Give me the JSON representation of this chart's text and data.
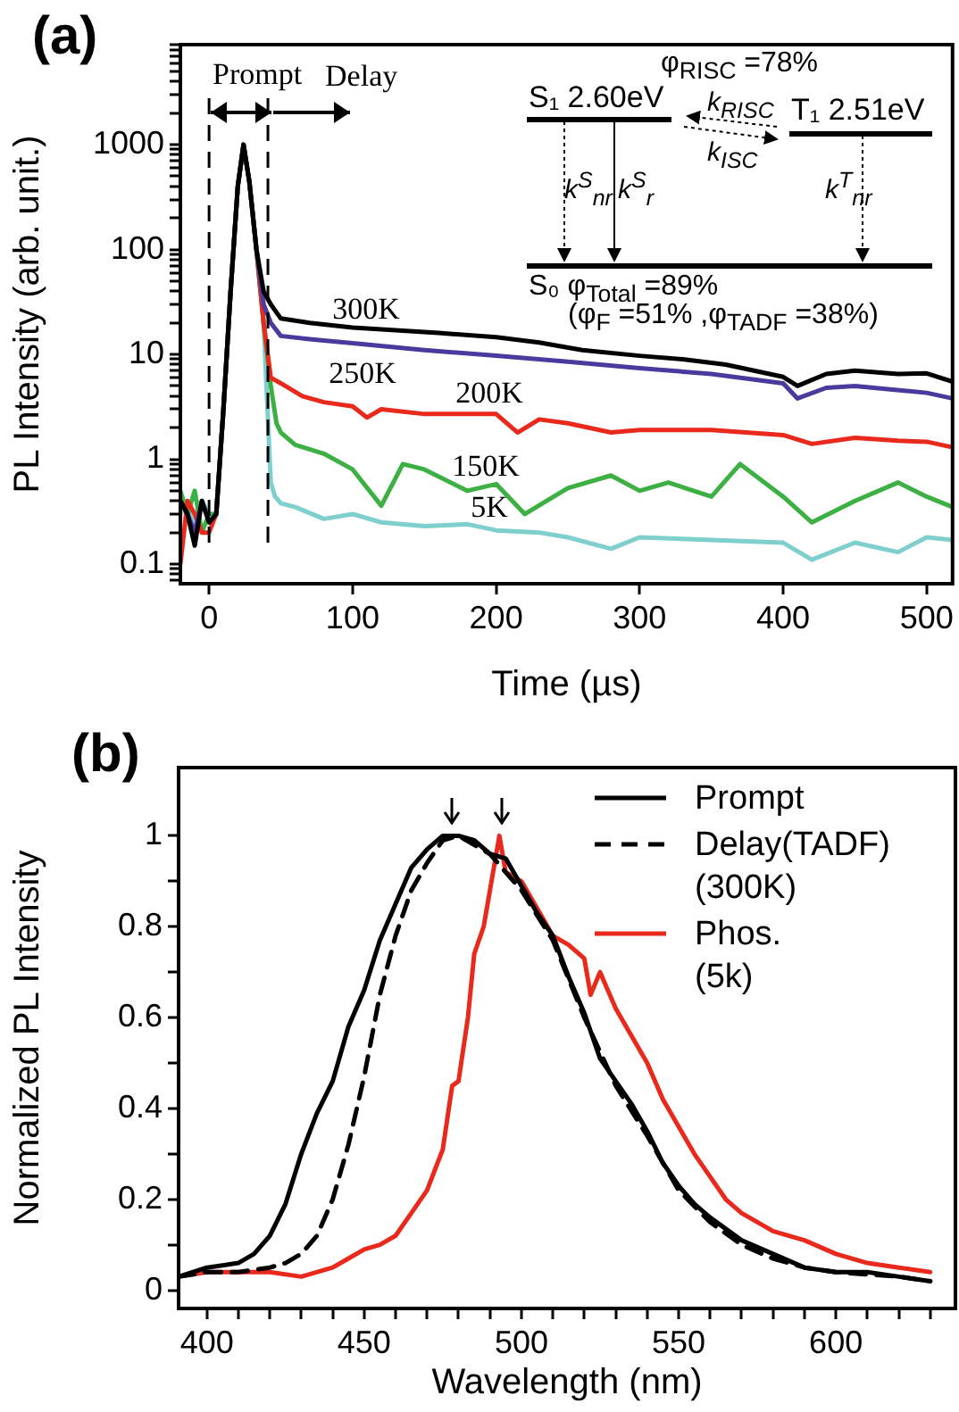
{
  "chart_data": [
    {
      "type": "line",
      "xlabel": "Time (µs)",
      "ylabel": "PL Intensity (arb. unit.)",
      "log": "y",
      "grid": false,
      "marker": "none",
      "line_style": "solid",
      "xlim": [
        -20,
        518
      ],
      "ylim": [
        0.065,
        9000
      ],
      "xticks": [
        0,
        100,
        200,
        300,
        400,
        500
      ],
      "yticks": [
        {
          "value": 0.07,
          "label": null
        },
        {
          "value": 0.08,
          "label": null
        },
        {
          "value": 0.09,
          "label": null
        },
        0.1,
        {
          "value": 0.2,
          "label": null
        },
        {
          "value": 0.3,
          "label": null
        },
        {
          "value": 0.4,
          "label": null
        },
        {
          "value": 0.5,
          "label": null
        },
        {
          "value": 0.6,
          "label": null
        },
        {
          "value": 0.7,
          "label": null
        },
        {
          "value": 0.8,
          "label": null
        },
        {
          "value": 0.9,
          "label": null
        },
        1,
        {
          "value": 2,
          "label": null
        },
        {
          "value": 3,
          "label": null
        },
        {
          "value": 4,
          "label": null
        },
        {
          "value": 5,
          "label": null
        },
        {
          "value": 6,
          "label": null
        },
        {
          "value": 7,
          "label": null
        },
        {
          "value": 8,
          "label": null
        },
        {
          "value": 9,
          "label": null
        },
        10,
        {
          "value": 20,
          "label": null
        },
        {
          "value": 30,
          "label": null
        },
        {
          "value": 40,
          "label": null
        },
        {
          "value": 50,
          "label": null
        },
        {
          "value": 60,
          "label": null
        },
        {
          "value": 70,
          "label": null
        },
        {
          "value": 80,
          "label": null
        },
        {
          "value": 90,
          "label": null
        },
        100,
        {
          "value": 200,
          "label": null
        },
        {
          "value": 300,
          "label": null
        },
        {
          "value": 400,
          "label": null
        },
        {
          "value": 500,
          "label": null
        },
        {
          "value": 600,
          "label": null
        },
        {
          "value": 700,
          "label": null
        },
        {
          "value": 800,
          "label": null
        },
        {
          "value": 900,
          "label": null
        },
        1000,
        {
          "value": 2000,
          "label": null
        },
        {
          "value": 3000,
          "label": null
        },
        {
          "value": 4000,
          "label": null
        },
        {
          "value": 5000,
          "label": null
        },
        {
          "value": 6000,
          "label": null
        },
        {
          "value": 7000,
          "label": null
        },
        {
          "value": 8000,
          "label": null
        },
        {
          "value": 9000,
          "label": null
        }
      ],
      "series": [
        {
          "name": "300K",
          "color": "#000000",
          "x": [
            -20,
            -15,
            -10,
            -5,
            0,
            5,
            10,
            15,
            20,
            24,
            28,
            33,
            38,
            43,
            50,
            70,
            100,
            130,
            160,
            200,
            230,
            260,
            300,
            330,
            360,
            400,
            410,
            430,
            450,
            480,
            500,
            518
          ],
          "values": [
            0.4,
            0.3,
            0.15,
            0.4,
            0.25,
            0.3,
            3,
            40,
            400,
            1000,
            450,
            100,
            40,
            30,
            22,
            20,
            18,
            17,
            16,
            14.6,
            13,
            11,
            9.7,
            9,
            8,
            6.1,
            5,
            6.5,
            7,
            6.5,
            6.6,
            5.5
          ]
        },
        {
          "name": "250K",
          "color": "#4b3a9e",
          "x": [
            -20,
            -15,
            -10,
            -5,
            0,
            5,
            10,
            15,
            20,
            24,
            28,
            33,
            38,
            43,
            50,
            70,
            100,
            150,
            200,
            250,
            300,
            350,
            400,
            410,
            430,
            450,
            500,
            518
          ],
          "values": [
            0.4,
            0.3,
            0.2,
            0.4,
            0.25,
            0.3,
            3,
            40,
            400,
            1000,
            450,
            100,
            30,
            20,
            15,
            14,
            12.8,
            11,
            9.7,
            8.5,
            7.4,
            6.5,
            5.3,
            3.8,
            4.8,
            5,
            4.3,
            3.8
          ]
        },
        {
          "name": "200K",
          "color": "#e8291c",
          "x": [
            -20,
            -15,
            -10,
            -5,
            0,
            5,
            10,
            15,
            20,
            24,
            28,
            33,
            38,
            43,
            50,
            65,
            80,
            100,
            110,
            120,
            150,
            200,
            215,
            230,
            250,
            280,
            300,
            350,
            400,
            420,
            450,
            480,
            500,
            518
          ],
          "values": [
            0.1,
            0.4,
            0.3,
            0.2,
            0.2,
            0.3,
            3,
            40,
            400,
            1000,
            450,
            100,
            20,
            6,
            5.3,
            4,
            3.5,
            3.2,
            2.5,
            3,
            2.7,
            2.7,
            1.8,
            2.4,
            2.2,
            1.8,
            1.9,
            1.9,
            1.7,
            1.4,
            1.6,
            1.5,
            1.47,
            1.3
          ]
        },
        {
          "name": "150K",
          "color": "#3cb043",
          "x": [
            -20,
            -15,
            -10,
            -5,
            0,
            5,
            10,
            15,
            20,
            24,
            28,
            33,
            38,
            43,
            47,
            50,
            60,
            80,
            100,
            120,
            135,
            150,
            180,
            200,
            220,
            250,
            280,
            300,
            320,
            350,
            370,
            400,
            420,
            450,
            480,
            500,
            518
          ],
          "values": [
            0.5,
            0.3,
            0.5,
            0.2,
            0.3,
            0.3,
            3,
            40,
            400,
            1000,
            450,
            100,
            20,
            5,
            2.2,
            1.8,
            1.37,
            1.13,
            0.8,
            0.36,
            0.9,
            0.8,
            0.5,
            0.58,
            0.3,
            0.53,
            0.7,
            0.5,
            0.6,
            0.44,
            0.9,
            0.44,
            0.25,
            0.4,
            0.6,
            0.44,
            0.35
          ]
        },
        {
          "name": "5K",
          "color": "#7fcfcf",
          "x": [
            -20,
            -15,
            -10,
            -5,
            0,
            5,
            10,
            15,
            20,
            24,
            28,
            33,
            38,
            43,
            46,
            50,
            60,
            80,
            100,
            120,
            150,
            180,
            200,
            230,
            250,
            280,
            300,
            350,
            400,
            420,
            450,
            480,
            500,
            518
          ],
          "values": [
            0.3,
            0.4,
            0.25,
            0.4,
            0.3,
            0.3,
            3,
            40,
            400,
            1000,
            450,
            100,
            20,
            0.6,
            0.44,
            0.38,
            0.35,
            0.27,
            0.3,
            0.25,
            0.23,
            0.24,
            0.21,
            0.2,
            0.18,
            0.14,
            0.18,
            0.17,
            0.16,
            0.11,
            0.16,
            0.13,
            0.18,
            0.17
          ]
        }
      ],
      "ref_lines": [
        {
          "axis": "x",
          "value": 0,
          "color": "#000000",
          "line_style": "dashed"
        },
        {
          "axis": "x",
          "value": 41,
          "color": "#000000",
          "line_style": "dashed"
        }
      ],
      "annotations": [
        "(a)",
        "Prompt",
        {
          "text": "Delay",
          "x": 41,
          "y": 2000
        },
        "φ$_{RISC}$ =78%",
        "S₁ 2.60eV",
        "T₁ 2.51eV",
        "k$_{RISC}$",
        "k$_{ISC}$",
        "k$^{S}$$_{nr}$",
        "k$^{S}$$_{r}$",
        "k$^{T}$$_{nr}$",
        "S₀ φ$_{Total}$ =89%",
        "(φ$_{F}$ =51% ,φ$_{TADF}$ =38%)"
      ]
    },
    {
      "type": "line",
      "xlabel": "Wavelength (nm)",
      "ylabel": "Normalized PL Intensity",
      "grid": false,
      "marker": "none",
      "legend": "top right",
      "xlim": [
        391,
        638
      ],
      "ylim": [
        -0.04,
        1.15
      ],
      "xticks": [
        400,
        {
          "value": 410,
          "label": null
        },
        {
          "value": 420,
          "label": null
        },
        {
          "value": 430,
          "label": null
        },
        {
          "value": 440,
          "label": null
        },
        450,
        {
          "value": 460,
          "label": null
        },
        {
          "value": 470,
          "label": null
        },
        {
          "value": 480,
          "label": null
        },
        {
          "value": 490,
          "label": null
        },
        500,
        {
          "value": 510,
          "label": null
        },
        {
          "value": 520,
          "label": null
        },
        {
          "value": 530,
          "label": null
        },
        {
          "value": 540,
          "label": null
        },
        550,
        {
          "value": 560,
          "label": null
        },
        {
          "value": 570,
          "label": null
        },
        {
          "value": 580,
          "label": null
        },
        {
          "value": 590,
          "label": null
        },
        600,
        {
          "value": 610,
          "label": null
        },
        {
          "value": 620,
          "label": null
        },
        {
          "value": 630,
          "label": null
        }
      ],
      "yticks": [
        0,
        {
          "value": 0.1,
          "label": null
        },
        0.2,
        {
          "value": 0.3,
          "label": null
        },
        0.4,
        {
          "value": 0.5,
          "label": null
        },
        0.6,
        {
          "value": 0.7,
          "label": null
        },
        0.8,
        {
          "value": 0.9,
          "label": null
        },
        1
      ],
      "series": [
        {
          "name": "Prompt",
          "color": "#000000",
          "line_style": "solid",
          "x": [
            391,
            400,
            410,
            415,
            420,
            425,
            430,
            435,
            440,
            445,
            450,
            455,
            460,
            465,
            470,
            475,
            480,
            485,
            490,
            495,
            500,
            505,
            510,
            515,
            520,
            525,
            530,
            535,
            540,
            545,
            550,
            555,
            560,
            570,
            580,
            590,
            600,
            610,
            620,
            630
          ],
          "values": [
            0.03,
            0.05,
            0.06,
            0.08,
            0.12,
            0.19,
            0.3,
            0.39,
            0.46,
            0.58,
            0.66,
            0.77,
            0.85,
            0.93,
            0.97,
            1.0,
            1.0,
            0.99,
            0.96,
            0.95,
            0.89,
            0.83,
            0.78,
            0.69,
            0.61,
            0.51,
            0.46,
            0.41,
            0.35,
            0.28,
            0.23,
            0.19,
            0.16,
            0.11,
            0.08,
            0.05,
            0.04,
            0.04,
            0.03,
            0.02
          ]
        },
        {
          "name": "Delay(TADF) (300K)",
          "color": "#000000",
          "line_style": "dashed",
          "x": [
            391,
            400,
            410,
            420,
            425,
            430,
            435,
            440,
            445,
            450,
            455,
            460,
            465,
            470,
            475,
            480,
            490,
            500,
            510,
            520,
            530,
            540,
            550,
            560,
            570,
            580,
            590,
            600,
            620,
            630
          ],
          "values": [
            0.03,
            0.04,
            0.04,
            0.05,
            0.06,
            0.08,
            0.12,
            0.2,
            0.32,
            0.47,
            0.65,
            0.78,
            0.88,
            0.94,
            0.99,
            1.0,
            0.96,
            0.88,
            0.77,
            0.6,
            0.45,
            0.34,
            0.22,
            0.15,
            0.1,
            0.07,
            0.05,
            0.04,
            0.03,
            0.02
          ]
        },
        {
          "name": "Phos. (5k)",
          "color": "#e8291c",
          "line_style": "solid",
          "x": [
            391,
            400,
            420,
            430,
            440,
            445,
            450,
            455,
            460,
            465,
            470,
            475,
            478,
            480,
            483,
            485,
            488,
            490,
            493,
            495,
            500,
            505,
            510,
            515,
            520,
            522,
            525,
            530,
            535,
            540,
            545,
            550,
            555,
            560,
            565,
            570,
            580,
            590,
            600,
            610,
            620,
            630
          ],
          "values": [
            0.03,
            0.04,
            0.04,
            0.03,
            0.05,
            0.07,
            0.09,
            0.1,
            0.12,
            0.17,
            0.22,
            0.31,
            0.45,
            0.46,
            0.6,
            0.74,
            0.8,
            0.88,
            1.0,
            0.92,
            0.9,
            0.84,
            0.78,
            0.76,
            0.73,
            0.65,
            0.7,
            0.62,
            0.56,
            0.5,
            0.42,
            0.36,
            0.3,
            0.25,
            0.2,
            0.17,
            0.13,
            0.11,
            0.08,
            0.06,
            0.05,
            0.04
          ]
        }
      ],
      "annotations": [
        "(b)"
      ]
    }
  ]
}
